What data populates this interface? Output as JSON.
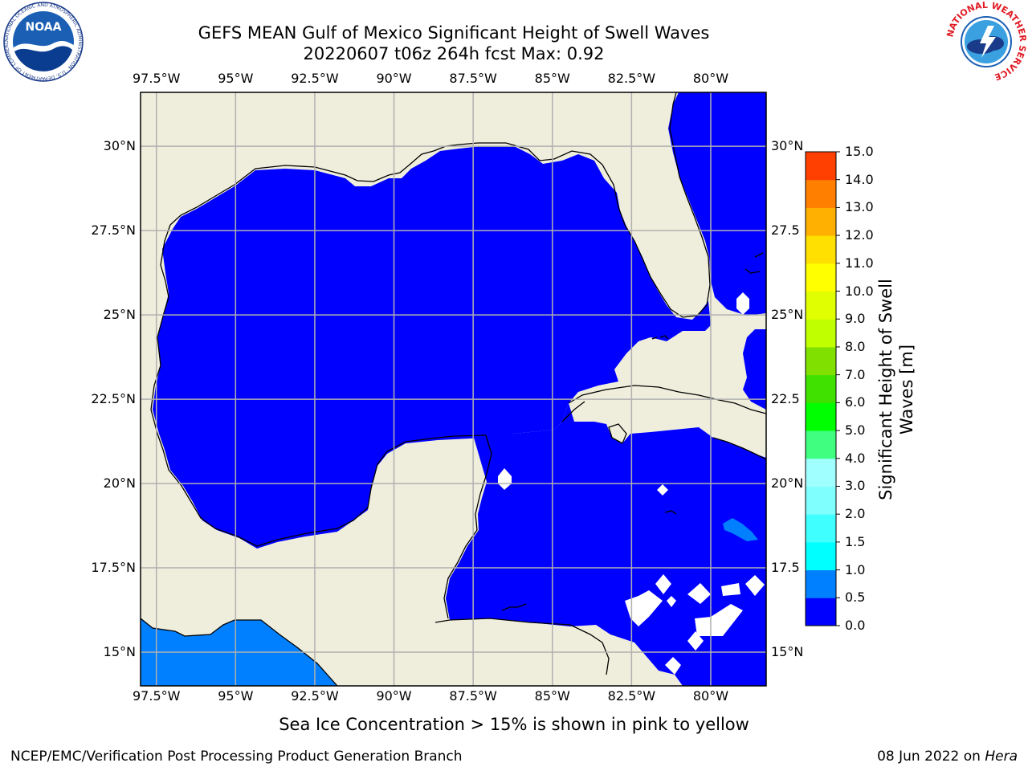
{
  "title_line1": "GEFS MEAN Gulf of Mexico Significant Height of Swell Waves",
  "title_line2": "20220607 t06z 264h fcst   Max: 0.92",
  "map": {
    "lon_ticks": [
      "97.5°W",
      "95°W",
      "92.5°W",
      "90°W",
      "87.5°W",
      "85°W",
      "82.5°W",
      "80°W"
    ],
    "lon_values": [
      -97.5,
      -95,
      -92.5,
      -90,
      -87.5,
      -85,
      -82.5,
      -80
    ],
    "lat_ticks": [
      "30°N",
      "27.5°N",
      "25°N",
      "22.5°N",
      "20°N",
      "17.5°N",
      "15°N"
    ],
    "lat_values": [
      30,
      27.5,
      25,
      22.5,
      20,
      17.5,
      15
    ],
    "lat_ticks_right": [
      "30°N",
      "27.5",
      "25°N",
      "22.5",
      "20°N",
      "17.5",
      "15°N"
    ],
    "lon_range": [
      -98,
      -78.25
    ],
    "lat_range": [
      14,
      31.6
    ],
    "land_color": "#efeedd",
    "ocean_color": "#0000ff",
    "swell_0_5_color": "#0080ff",
    "grid_color": "#b0b0b0"
  },
  "colorbar": {
    "label": "Significant Height of Swell Waves [m]",
    "ticks": [
      "0.0",
      "0.5",
      "1.0",
      "1.5",
      "2.0",
      "3.0",
      "4.0",
      "5.0",
      "6.0",
      "7.0",
      "8.0",
      "9.0",
      "10.0",
      "11.0",
      "12.0",
      "13.0",
      "14.0",
      "15.0"
    ],
    "colors": [
      "#0000ff",
      "#0080ff",
      "#00ffff",
      "#40ffff",
      "#80ffff",
      "#a0ffff",
      "#40ff80",
      "#00ff00",
      "#40e000",
      "#80e000",
      "#c0ff00",
      "#e0ff00",
      "#ffff00",
      "#ffe000",
      "#ffb000",
      "#ff8000",
      "#ff4000",
      "#ff0000"
    ]
  },
  "subtitle": "Sea Ice Concentration > 15% is shown in pink to yellow",
  "credit": "NCEP/EMC/Verification Post Processing Product Generation Branch",
  "date_prefix": "08 Jun 2022 on ",
  "date_host": "Hera",
  "logos": {
    "noaa_text": "NOAA",
    "noaa_ring": "NATIONAL OCEANIC AND ATMOSPHERIC ADMINISTRATION · U.S. DEPARTMENT OF COMMERCE",
    "nws_ring": "NATIONAL WEATHER SERVICE"
  }
}
